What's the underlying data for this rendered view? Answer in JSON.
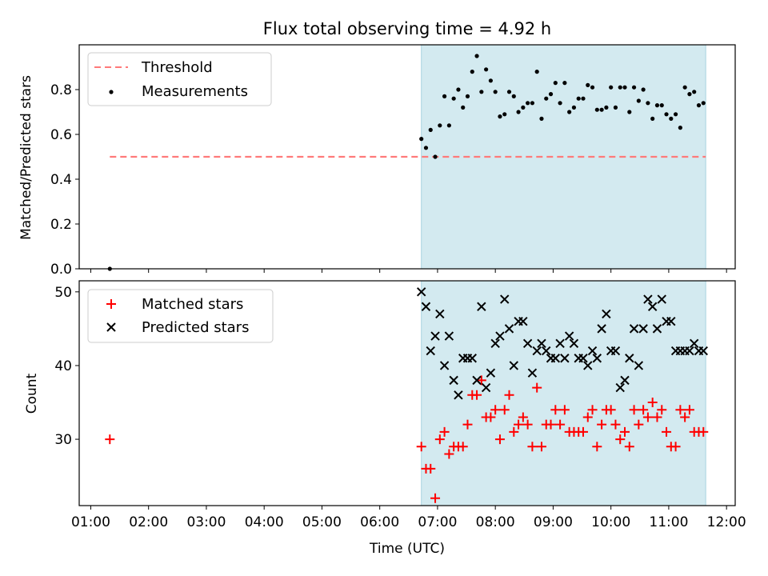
{
  "chart_data": {
    "type": "scatter",
    "title": "Flux total observing time = 4.92 h",
    "xlabel": "Time (UTC)",
    "xticks": [
      "01:00",
      "02:00",
      "03:00",
      "04:00",
      "05:00",
      "06:00",
      "07:00",
      "08:00",
      "09:00",
      "10:00",
      "11:00",
      "12:00"
    ],
    "xlim_hours": [
      0.8,
      12.15
    ],
    "shaded_span_hours": [
      6.72,
      11.64
    ],
    "colors": {
      "threshold": "#ff7a7a",
      "measurements": "#000000",
      "matched": "#ff0000",
      "predicted": "#000000",
      "span_fill": "#d3eaf0",
      "span_edge": "#a8d4e0"
    },
    "panels": [
      {
        "id": "ratio",
        "ylabel": "Matched/Predicted stars",
        "ylim": [
          0,
          1.0
        ],
        "yticks": [
          "0.0",
          "0.2",
          "0.4",
          "0.6",
          "0.8"
        ],
        "legend": [
          "Threshold",
          "Measurements"
        ],
        "threshold": {
          "x": [
            1.33,
            11.64
          ],
          "y": 0.5
        },
        "measurements": {
          "x": [
            1.33,
            6.72,
            6.8,
            6.88,
            6.96,
            7.04,
            7.12,
            7.2,
            7.28,
            7.36,
            7.44,
            7.52,
            7.6,
            7.68,
            7.76,
            7.84,
            7.92,
            8.0,
            8.08,
            8.16,
            8.24,
            8.32,
            8.4,
            8.48,
            8.56,
            8.64,
            8.72,
            8.8,
            8.88,
            8.96,
            9.04,
            9.12,
            9.2,
            9.28,
            9.36,
            9.44,
            9.52,
            9.6,
            9.68,
            9.76,
            9.84,
            9.92,
            10.0,
            10.08,
            10.16,
            10.24,
            10.32,
            10.4,
            10.48,
            10.56,
            10.64,
            10.72,
            10.8,
            10.88,
            10.96,
            11.04,
            11.12,
            11.2,
            11.28,
            11.36,
            11.44,
            11.52,
            11.6
          ],
          "y": [
            0.0,
            0.58,
            0.54,
            0.62,
            0.5,
            0.64,
            0.77,
            0.64,
            0.76,
            0.8,
            0.72,
            0.77,
            0.88,
            0.95,
            0.79,
            0.89,
            0.84,
            0.79,
            0.68,
            0.69,
            0.79,
            0.77,
            0.7,
            0.72,
            0.74,
            0.74,
            0.88,
            0.67,
            0.76,
            0.78,
            0.83,
            0.74,
            0.83,
            0.7,
            0.72,
            0.76,
            0.76,
            0.82,
            0.81,
            0.71,
            0.71,
            0.72,
            0.81,
            0.72,
            0.81,
            0.81,
            0.7,
            0.81,
            0.75,
            0.8,
            0.74,
            0.67,
            0.73,
            0.73,
            0.69,
            0.67,
            0.69,
            0.63,
            0.81,
            0.78,
            0.79,
            0.73,
            0.74
          ]
        }
      },
      {
        "id": "count",
        "ylabel": "Count",
        "ylim": [
          21,
          51.5
        ],
        "yticks": [
          "30",
          "40",
          "50"
        ],
        "legend": [
          "Matched stars",
          "Predicted stars"
        ],
        "matched": {
          "x": [
            1.33,
            6.72,
            6.8,
            6.88,
            6.96,
            7.04,
            7.12,
            7.2,
            7.28,
            7.36,
            7.44,
            7.52,
            7.6,
            7.68,
            7.76,
            7.84,
            7.92,
            8.0,
            8.08,
            8.16,
            8.24,
            8.32,
            8.4,
            8.48,
            8.56,
            8.64,
            8.72,
            8.8,
            8.88,
            8.96,
            9.04,
            9.12,
            9.2,
            9.28,
            9.36,
            9.44,
            9.52,
            9.6,
            9.68,
            9.76,
            9.84,
            9.92,
            10.0,
            10.08,
            10.16,
            10.24,
            10.32,
            10.4,
            10.48,
            10.56,
            10.64,
            10.72,
            10.8,
            10.88,
            10.96,
            11.04,
            11.12,
            11.2,
            11.28,
            11.36,
            11.44,
            11.52,
            11.6
          ],
          "y": [
            30,
            29,
            26,
            26,
            22,
            30,
            31,
            28,
            29,
            29,
            29,
            32,
            36,
            36,
            38,
            33,
            33,
            34,
            30,
            34,
            36,
            31,
            32,
            33,
            32,
            29,
            37,
            29,
            32,
            32,
            34,
            32,
            34,
            31,
            31,
            31,
            31,
            33,
            34,
            29,
            32,
            34,
            34,
            32,
            30,
            31,
            29,
            34,
            32,
            34,
            33,
            35,
            33,
            34,
            31,
            29,
            29,
            34,
            33,
            34,
            31,
            31,
            31
          ]
        },
        "predicted": {
          "x": [
            6.72,
            6.8,
            6.88,
            6.96,
            7.04,
            7.12,
            7.2,
            7.28,
            7.36,
            7.44,
            7.52,
            7.6,
            7.68,
            7.76,
            7.84,
            7.92,
            8.0,
            8.08,
            8.16,
            8.24,
            8.32,
            8.4,
            8.48,
            8.56,
            8.64,
            8.72,
            8.8,
            8.88,
            8.96,
            9.04,
            9.12,
            9.2,
            9.28,
            9.36,
            9.44,
            9.52,
            9.6,
            9.68,
            9.76,
            9.84,
            9.92,
            10.0,
            10.08,
            10.16,
            10.24,
            10.32,
            10.4,
            10.48,
            10.56,
            10.64,
            10.72,
            10.8,
            10.88,
            10.96,
            11.04,
            11.12,
            11.2,
            11.28,
            11.36,
            11.44,
            11.52,
            11.6
          ],
          "y": [
            50,
            48,
            42,
            44,
            47,
            40,
            44,
            38,
            36,
            41,
            41,
            41,
            38,
            48,
            37,
            39,
            43,
            44,
            49,
            45,
            40,
            46,
            46,
            43,
            39,
            42,
            43,
            42,
            41,
            41,
            43,
            41,
            44,
            43,
            41,
            41,
            40,
            42,
            41,
            45,
            47,
            42,
            42,
            37,
            38,
            41,
            45,
            40,
            45,
            49,
            48,
            45,
            49,
            46,
            46,
            42,
            42,
            42,
            42,
            43,
            42,
            42
          ]
        }
      }
    ]
  }
}
